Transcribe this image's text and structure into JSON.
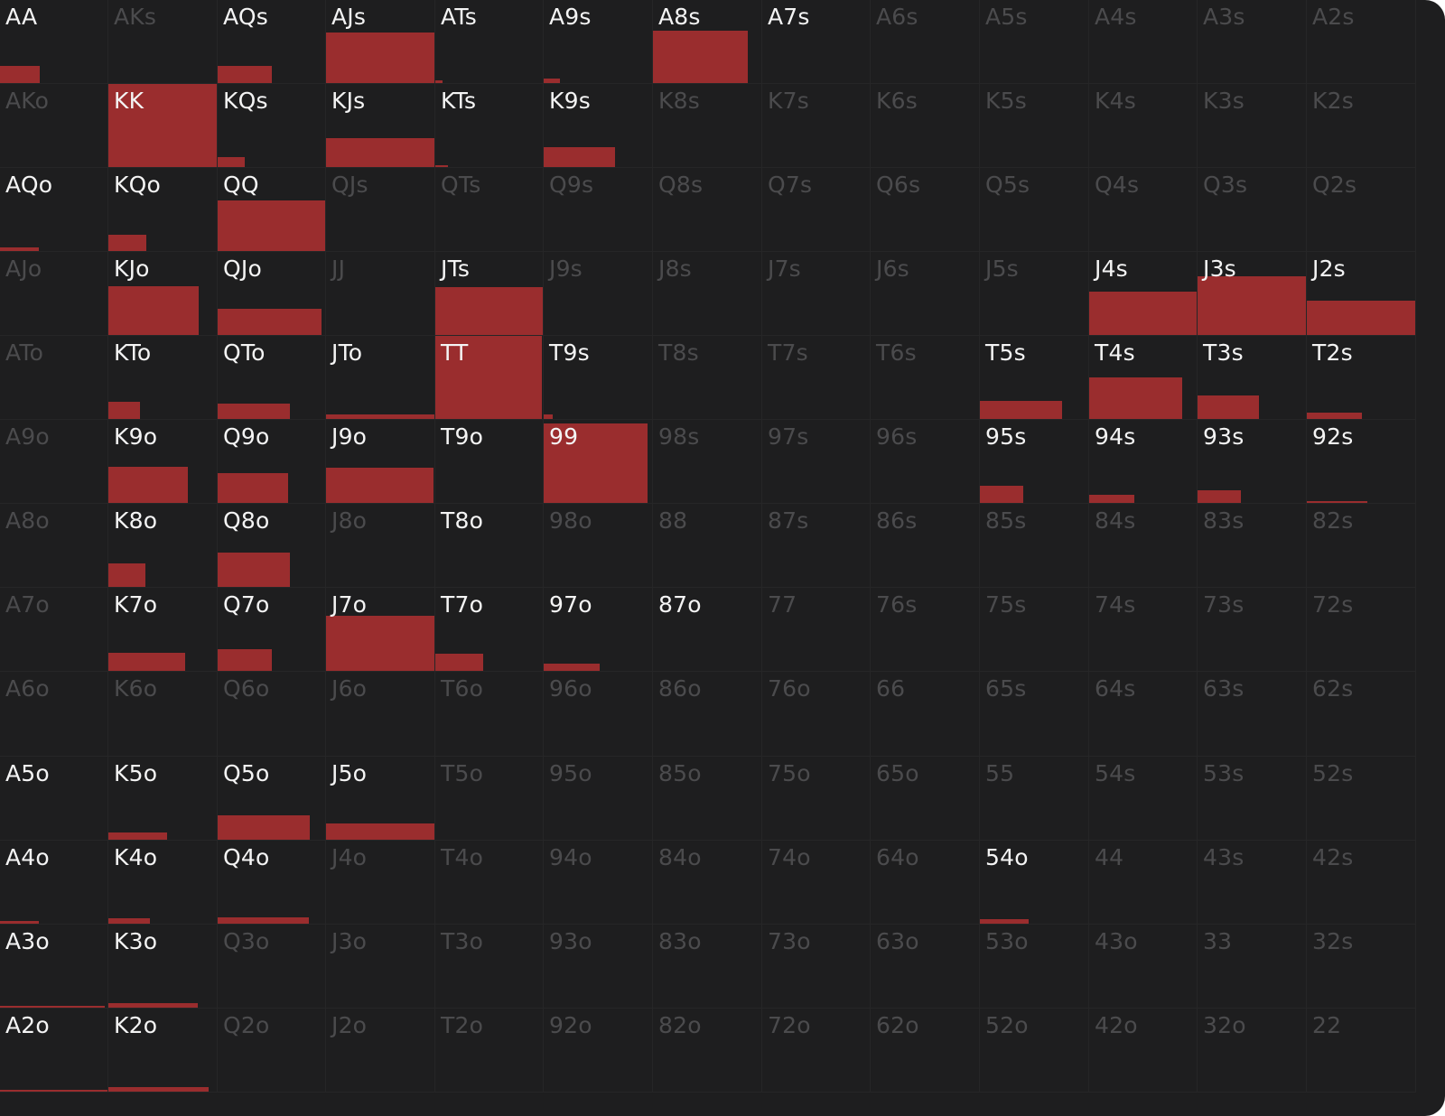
{
  "theme": {
    "background": "#1e1e1f",
    "bar_color": "#9a2d2e",
    "active_label": "#f4f4f4",
    "inactive_label": "#4b4b4d"
  },
  "hands": [
    [
      "AA",
      "AKs",
      "AQs",
      "AJs",
      "ATs",
      "A9s",
      "A8s",
      "A7s",
      "A6s",
      "A5s",
      "A4s",
      "A3s",
      "A2s"
    ],
    [
      "AKo",
      "KK",
      "KQs",
      "KJs",
      "KTs",
      "K9s",
      "K8s",
      "K7s",
      "K6s",
      "K5s",
      "K4s",
      "K3s",
      "K2s"
    ],
    [
      "AQo",
      "KQo",
      "QQ",
      "QJs",
      "QTs",
      "Q9s",
      "Q8s",
      "Q7s",
      "Q6s",
      "Q5s",
      "Q4s",
      "Q3s",
      "Q2s"
    ],
    [
      "AJo",
      "KJo",
      "QJo",
      "JJ",
      "JTs",
      "J9s",
      "J8s",
      "J7s",
      "J6s",
      "J5s",
      "J4s",
      "J3s",
      "J2s"
    ],
    [
      "ATo",
      "KTo",
      "QTo",
      "JTo",
      "TT",
      "T9s",
      "T8s",
      "T7s",
      "T6s",
      "T5s",
      "T4s",
      "T3s",
      "T2s"
    ],
    [
      "A9o",
      "K9o",
      "Q9o",
      "J9o",
      "T9o",
      "99",
      "98s",
      "97s",
      "96s",
      "95s",
      "94s",
      "93s",
      "92s"
    ],
    [
      "A8o",
      "K8o",
      "Q8o",
      "J8o",
      "T8o",
      "98o",
      "88",
      "87s",
      "86s",
      "85s",
      "84s",
      "83s",
      "82s"
    ],
    [
      "A7o",
      "K7o",
      "Q7o",
      "J7o",
      "T7o",
      "97o",
      "87o",
      "77",
      "76s",
      "75s",
      "74s",
      "73s",
      "72s"
    ],
    [
      "A6o",
      "K6o",
      "Q6o",
      "J6o",
      "T6o",
      "96o",
      "86o",
      "76o",
      "66",
      "65s",
      "64s",
      "63s",
      "62s"
    ],
    [
      "A5o",
      "K5o",
      "Q5o",
      "J5o",
      "T5o",
      "95o",
      "85o",
      "75o",
      "65o",
      "55",
      "54s",
      "53s",
      "52s"
    ],
    [
      "A4o",
      "K4o",
      "Q4o",
      "J4o",
      "T4o",
      "94o",
      "84o",
      "74o",
      "64o",
      "54o",
      "44",
      "43s",
      "42s"
    ],
    [
      "A3o",
      "K3o",
      "Q3o",
      "J3o",
      "T3o",
      "93o",
      "83o",
      "73o",
      "63o",
      "53o",
      "43o",
      "33",
      "32s"
    ],
    [
      "A2o",
      "K2o",
      "Q2o",
      "J2o",
      "T2o",
      "92o",
      "82o",
      "72o",
      "62o",
      "52o",
      "42o",
      "32o",
      "22"
    ]
  ],
  "active": [
    [
      1,
      0,
      1,
      1,
      1,
      1,
      1,
      1,
      0,
      0,
      0,
      0,
      0
    ],
    [
      0,
      1,
      1,
      1,
      1,
      1,
      0,
      0,
      0,
      0,
      0,
      0,
      0
    ],
    [
      1,
      1,
      1,
      0,
      0,
      0,
      0,
      0,
      0,
      0,
      0,
      0,
      0
    ],
    [
      0,
      1,
      1,
      0,
      1,
      0,
      0,
      0,
      0,
      0,
      1,
      1,
      1
    ],
    [
      0,
      1,
      1,
      1,
      1,
      1,
      0,
      0,
      0,
      1,
      1,
      1,
      1
    ],
    [
      0,
      1,
      1,
      1,
      1,
      1,
      0,
      0,
      0,
      1,
      1,
      1,
      1
    ],
    [
      0,
      1,
      1,
      0,
      1,
      0,
      0,
      0,
      0,
      0,
      0,
      0,
      0
    ],
    [
      0,
      1,
      1,
      1,
      1,
      1,
      1,
      0,
      0,
      0,
      0,
      0,
      0
    ],
    [
      0,
      0,
      0,
      0,
      0,
      0,
      0,
      0,
      0,
      0,
      0,
      0,
      0
    ],
    [
      1,
      1,
      1,
      1,
      0,
      0,
      0,
      0,
      0,
      0,
      0,
      0,
      0
    ],
    [
      1,
      1,
      1,
      0,
      0,
      0,
      0,
      0,
      0,
      1,
      0,
      0,
      0
    ],
    [
      1,
      1,
      0,
      0,
      0,
      0,
      0,
      0,
      0,
      0,
      0,
      0,
      0
    ],
    [
      1,
      1,
      0,
      0,
      0,
      0,
      0,
      0,
      0,
      0,
      0,
      0,
      0
    ]
  ],
  "frequency_bars": [
    {
      "hand": "AA",
      "w": 0.37,
      "h": 0.2
    },
    {
      "hand": "AQs",
      "w": 0.5,
      "h": 0.2
    },
    {
      "hand": "AJs",
      "w": 1.0,
      "h": 0.6
    },
    {
      "hand": "ATs",
      "w": 0.07,
      "h": 0.03
    },
    {
      "hand": "A9s",
      "w": 0.15,
      "h": 0.05
    },
    {
      "hand": "A8s",
      "w": 0.87,
      "h": 0.62
    },
    {
      "hand": "KK",
      "w": 1.0,
      "h": 1.0
    },
    {
      "hand": "KQs",
      "w": 0.25,
      "h": 0.12
    },
    {
      "hand": "KJs",
      "w": 1.0,
      "h": 0.34
    },
    {
      "hand": "KTs",
      "w": 0.12,
      "h": 0.01
    },
    {
      "hand": "K9s",
      "w": 0.65,
      "h": 0.24
    },
    {
      "hand": "AQo",
      "w": 0.36,
      "h": 0.04
    },
    {
      "hand": "KQo",
      "w": 0.35,
      "h": 0.19
    },
    {
      "hand": "QQ",
      "w": 1.0,
      "h": 0.6
    },
    {
      "hand": "KJo",
      "w": 0.83,
      "h": 0.58
    },
    {
      "hand": "QJo",
      "w": 0.96,
      "h": 0.31
    },
    {
      "hand": "JTs",
      "w": 1.0,
      "h": 0.57
    },
    {
      "hand": "J4s",
      "w": 1.0,
      "h": 0.52
    },
    {
      "hand": "J3s",
      "w": 1.0,
      "h": 0.7
    },
    {
      "hand": "J2s",
      "w": 1.0,
      "h": 0.41
    },
    {
      "hand": "KTo",
      "w": 0.29,
      "h": 0.2
    },
    {
      "hand": "QTo",
      "w": 0.67,
      "h": 0.18
    },
    {
      "hand": "JTo",
      "w": 1.0,
      "h": 0.05
    },
    {
      "hand": "TT",
      "w": 0.98,
      "h": 1.0
    },
    {
      "hand": "T9s",
      "w": 0.08,
      "h": 0.05
    },
    {
      "hand": "T5s",
      "w": 0.75,
      "h": 0.22
    },
    {
      "hand": "T4s",
      "w": 0.86,
      "h": 0.49
    },
    {
      "hand": "T3s",
      "w": 0.56,
      "h": 0.28
    },
    {
      "hand": "T2s",
      "w": 0.5,
      "h": 0.08
    },
    {
      "hand": "K9o",
      "w": 0.73,
      "h": 0.43
    },
    {
      "hand": "Q9o",
      "w": 0.65,
      "h": 0.35
    },
    {
      "hand": "J9o",
      "w": 0.98,
      "h": 0.42
    },
    {
      "hand": "99",
      "w": 0.95,
      "h": 0.95
    },
    {
      "hand": "95s",
      "w": 0.4,
      "h": 0.2
    },
    {
      "hand": "94s",
      "w": 0.42,
      "h": 0.1
    },
    {
      "hand": "93s",
      "w": 0.4,
      "h": 0.15
    },
    {
      "hand": "92s",
      "w": 0.55,
      "h": 0.02
    },
    {
      "hand": "K8o",
      "w": 0.34,
      "h": 0.28
    },
    {
      "hand": "Q8o",
      "w": 0.67,
      "h": 0.41
    },
    {
      "hand": "K7o",
      "w": 0.7,
      "h": 0.22
    },
    {
      "hand": "Q7o",
      "w": 0.5,
      "h": 0.26
    },
    {
      "hand": "J7o",
      "w": 1.0,
      "h": 0.66
    },
    {
      "hand": "T7o",
      "w": 0.44,
      "h": 0.2
    },
    {
      "hand": "97o",
      "w": 0.51,
      "h": 0.09
    },
    {
      "hand": "K5o",
      "w": 0.54,
      "h": 0.09
    },
    {
      "hand": "Q5o",
      "w": 0.85,
      "h": 0.29
    },
    {
      "hand": "J5o",
      "w": 1.0,
      "h": 0.19
    },
    {
      "hand": "A4o",
      "w": 0.36,
      "h": 0.03
    },
    {
      "hand": "K4o",
      "w": 0.38,
      "h": 0.06
    },
    {
      "hand": "Q4o",
      "w": 0.84,
      "h": 0.07
    },
    {
      "hand": "54o",
      "w": 0.45,
      "h": 0.05
    },
    {
      "hand": "A3o",
      "w": 0.97,
      "h": 0.02
    },
    {
      "hand": "K3o",
      "w": 0.82,
      "h": 0.05
    },
    {
      "hand": "A2o",
      "w": 1.0,
      "h": 0.02
    },
    {
      "hand": "K2o",
      "w": 0.92,
      "h": 0.05
    }
  ]
}
